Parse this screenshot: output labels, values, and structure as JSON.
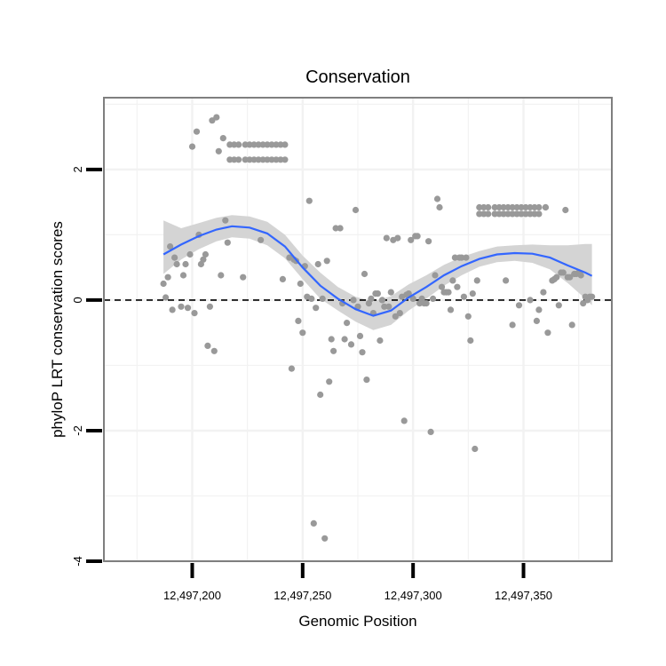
{
  "colors": {
    "points": "#999999",
    "smooth_line": "#3366FF",
    "ribbon": "#D4D4D4",
    "panel_border": "#7F7F7F",
    "grid": "#F2F2F2",
    "reference_line": "#000000"
  },
  "chart_data": {
    "type": "scatter",
    "title": "Conservation",
    "xlabel": "Genomic Position",
    "ylabel": "phyloP LRT conservation scores",
    "xlim": [
      12497160,
      12497390
    ],
    "ylim": [
      -4,
      3.1
    ],
    "x_ticks": [
      12497200,
      12497250,
      12497300,
      12497350
    ],
    "x_tick_labels": [
      "12,497,200",
      "12,497,250",
      "12,497,300",
      "12,497,350"
    ],
    "y_ticks": [
      -4,
      -2,
      0,
      2
    ],
    "y_tick_labels": [
      "-4",
      "-2",
      "0",
      "2"
    ],
    "reference_line": {
      "y": 0,
      "style": "dashed"
    },
    "grid": true,
    "points": [
      [
        12497187,
        0.25
      ],
      [
        12497188,
        0.04
      ],
      [
        12497189,
        0.35
      ],
      [
        12497190,
        0.82
      ],
      [
        12497191,
        -0.15
      ],
      [
        12497192,
        0.65
      ],
      [
        12497193,
        0.55
      ],
      [
        12497195,
        -0.1
      ],
      [
        12497196,
        0.38
      ],
      [
        12497197,
        0.55
      ],
      [
        12497198,
        -0.12
      ],
      [
        12497199,
        0.7
      ],
      [
        12497200,
        2.35
      ],
      [
        12497201,
        -0.2
      ],
      [
        12497202,
        2.58
      ],
      [
        12497203,
        1.0
      ],
      [
        12497204,
        0.55
      ],
      [
        12497205,
        0.62
      ],
      [
        12497206,
        0.7
      ],
      [
        12497207,
        -0.7
      ],
      [
        12497208,
        -0.1
      ],
      [
        12497209,
        2.75
      ],
      [
        12497210,
        -0.78
      ],
      [
        12497211,
        2.8
      ],
      [
        12497212,
        2.28
      ],
      [
        12497213,
        0.38
      ],
      [
        12497214,
        2.48
      ],
      [
        12497215,
        1.22
      ],
      [
        12497216,
        0.88
      ],
      [
        12497217,
        2.38
      ],
      [
        12497217,
        2.15
      ],
      [
        12497219,
        2.38
      ],
      [
        12497219,
        2.15
      ],
      [
        12497221,
        2.38
      ],
      [
        12497221,
        2.15
      ],
      [
        12497224,
        2.38
      ],
      [
        12497224,
        2.15
      ],
      [
        12497226,
        2.38
      ],
      [
        12497226,
        2.15
      ],
      [
        12497228,
        2.38
      ],
      [
        12497228,
        2.15
      ],
      [
        12497230,
        2.38
      ],
      [
        12497230,
        2.15
      ],
      [
        12497232,
        2.38
      ],
      [
        12497232,
        2.15
      ],
      [
        12497234,
        2.38
      ],
      [
        12497234,
        2.15
      ],
      [
        12497236,
        2.38
      ],
      [
        12497236,
        2.15
      ],
      [
        12497238,
        2.38
      ],
      [
        12497238,
        2.15
      ],
      [
        12497240,
        2.38
      ],
      [
        12497240,
        2.15
      ],
      [
        12497242,
        2.38
      ],
      [
        12497242,
        2.15
      ],
      [
        12497223,
        0.35
      ],
      [
        12497231,
        0.92
      ],
      [
        12497241,
        0.32
      ],
      [
        12497244,
        0.65
      ],
      [
        12497245,
        -1.05
      ],
      [
        12497246,
        0.62
      ],
      [
        12497247,
        0.6
      ],
      [
        12497248,
        -0.32
      ],
      [
        12497249,
        0.25
      ],
      [
        12497250,
        -0.5
      ],
      [
        12497251,
        0.52
      ],
      [
        12497252,
        0.05
      ],
      [
        12497253,
        1.52
      ],
      [
        12497254,
        0.02
      ],
      [
        12497255,
        -3.42
      ],
      [
        12497256,
        -0.12
      ],
      [
        12497257,
        0.55
      ],
      [
        12497258,
        -1.45
      ],
      [
        12497259,
        0.02
      ],
      [
        12497260,
        -3.65
      ],
      [
        12497261,
        0.6
      ],
      [
        12497262,
        -1.25
      ],
      [
        12497263,
        -0.6
      ],
      [
        12497264,
        -0.78
      ],
      [
        12497265,
        1.1
      ],
      [
        12497267,
        1.1
      ],
      [
        12497268,
        -0.05
      ],
      [
        12497269,
        -0.6
      ],
      [
        12497270,
        -0.35
      ],
      [
        12497272,
        -0.68
      ],
      [
        12497273,
        0.0
      ],
      [
        12497274,
        1.38
      ],
      [
        12497275,
        -0.1
      ],
      [
        12497276,
        -0.55
      ],
      [
        12497277,
        -0.8
      ],
      [
        12497278,
        0.4
      ],
      [
        12497279,
        -1.22
      ],
      [
        12497280,
        -0.05
      ],
      [
        12497281,
        0.02
      ],
      [
        12497282,
        -0.2
      ],
      [
        12497283,
        0.1
      ],
      [
        12497284,
        0.1
      ],
      [
        12497285,
        -0.62
      ],
      [
        12497286,
        0.0
      ],
      [
        12497287,
        -0.1
      ],
      [
        12497288,
        0.95
      ],
      [
        12497289,
        -0.1
      ],
      [
        12497290,
        0.12
      ],
      [
        12497291,
        0.92
      ],
      [
        12497292,
        -0.25
      ],
      [
        12497293,
        0.95
      ],
      [
        12497294,
        -0.2
      ],
      [
        12497295,
        0.05
      ],
      [
        12497296,
        -1.85
      ],
      [
        12497297,
        0.08
      ],
      [
        12497298,
        0.1
      ],
      [
        12497299,
        0.92
      ],
      [
        12497300,
        0.02
      ],
      [
        12497301,
        0.98
      ],
      [
        12497302,
        0.98
      ],
      [
        12497303,
        -0.05
      ],
      [
        12497304,
        0.02
      ],
      [
        12497305,
        -0.05
      ],
      [
        12497306,
        -0.05
      ],
      [
        12497307,
        0.9
      ],
      [
        12497308,
        -2.02
      ],
      [
        12497309,
        0.02
      ],
      [
        12497310,
        0.38
      ],
      [
        12497311,
        1.55
      ],
      [
        12497312,
        1.42
      ],
      [
        12497313,
        0.2
      ],
      [
        12497314,
        0.12
      ],
      [
        12497315,
        0.12
      ],
      [
        12497316,
        0.12
      ],
      [
        12497317,
        -0.15
      ],
      [
        12497318,
        0.3
      ],
      [
        12497319,
        0.65
      ],
      [
        12497320,
        0.2
      ],
      [
        12497321,
        0.65
      ],
      [
        12497322,
        0.65
      ],
      [
        12497323,
        0.05
      ],
      [
        12497324,
        0.65
      ],
      [
        12497325,
        -0.25
      ],
      [
        12497326,
        -0.62
      ],
      [
        12497327,
        0.1
      ],
      [
        12497328,
        -2.28
      ],
      [
        12497329,
        0.3
      ],
      [
        12497342,
        0.3
      ],
      [
        12497330,
        1.42
      ],
      [
        12497330,
        1.32
      ],
      [
        12497332,
        1.42
      ],
      [
        12497332,
        1.32
      ],
      [
        12497334,
        1.42
      ],
      [
        12497334,
        1.32
      ],
      [
        12497337,
        1.42
      ],
      [
        12497337,
        1.32
      ],
      [
        12497339,
        1.42
      ],
      [
        12497339,
        1.32
      ],
      [
        12497341,
        1.42
      ],
      [
        12497341,
        1.32
      ],
      [
        12497343,
        1.42
      ],
      [
        12497343,
        1.32
      ],
      [
        12497345,
        1.42
      ],
      [
        12497345,
        1.32
      ],
      [
        12497347,
        1.42
      ],
      [
        12497347,
        1.32
      ],
      [
        12497349,
        1.42
      ],
      [
        12497349,
        1.32
      ],
      [
        12497351,
        1.42
      ],
      [
        12497351,
        1.32
      ],
      [
        12497353,
        1.42
      ],
      [
        12497353,
        1.32
      ],
      [
        12497355,
        1.42
      ],
      [
        12497355,
        1.32
      ],
      [
        12497357,
        1.42
      ],
      [
        12497357,
        1.32
      ],
      [
        12497360,
        1.42
      ],
      [
        12497360,
        1.42
      ],
      [
        12497345,
        -0.38
      ],
      [
        12497348,
        -0.08
      ],
      [
        12497353,
        0.0
      ],
      [
        12497356,
        -0.32
      ],
      [
        12497357,
        -0.15
      ],
      [
        12497359,
        0.12
      ],
      [
        12497361,
        -0.5
      ],
      [
        12497363,
        0.3
      ],
      [
        12497364,
        0.32
      ],
      [
        12497365,
        0.35
      ],
      [
        12497366,
        -0.08
      ],
      [
        12497367,
        0.42
      ],
      [
        12497368,
        0.42
      ],
      [
        12497369,
        1.38
      ],
      [
        12497370,
        0.35
      ],
      [
        12497371,
        0.35
      ],
      [
        12497372,
        -0.38
      ],
      [
        12497373,
        0.4
      ],
      [
        12497374,
        0.4
      ],
      [
        12497375,
        0.42
      ],
      [
        12497376,
        0.38
      ],
      [
        12497377,
        -0.05
      ],
      [
        12497378,
        0.05
      ],
      [
        12497379,
        0.0
      ],
      [
        12497380,
        0.05
      ],
      [
        12497381,
        0.05
      ]
    ],
    "smooth": {
      "x": [
        12497187,
        12497195,
        12497203,
        12497211,
        12497218,
        12497226,
        12497234,
        12497242,
        12497250,
        12497258,
        12497266,
        12497274,
        12497282,
        12497290,
        12497298,
        12497306,
        12497314,
        12497322,
        12497330,
        12497338,
        12497346,
        12497354,
        12497362,
        12497370,
        12497378,
        12497381
      ],
      "y": [
        0.7,
        0.85,
        0.98,
        1.08,
        1.13,
        1.11,
        1.02,
        0.82,
        0.5,
        0.22,
        0.02,
        -0.14,
        -0.24,
        -0.16,
        0.04,
        0.2,
        0.38,
        0.52,
        0.63,
        0.7,
        0.72,
        0.71,
        0.65,
        0.53,
        0.42,
        0.37
      ],
      "lower": [
        0.4,
        0.62,
        0.78,
        0.9,
        0.96,
        0.94,
        0.84,
        0.64,
        0.32,
        0.02,
        -0.16,
        -0.33,
        -0.46,
        -0.38,
        -0.16,
        0.02,
        0.22,
        0.38,
        0.51,
        0.58,
        0.6,
        0.57,
        0.47,
        0.26,
        0.02,
        -0.08
      ],
      "upper": [
        1.22,
        1.1,
        1.18,
        1.26,
        1.3,
        1.28,
        1.2,
        1.0,
        0.68,
        0.42,
        0.2,
        0.05,
        -0.02,
        0.06,
        0.24,
        0.38,
        0.54,
        0.66,
        0.75,
        0.82,
        0.84,
        0.85,
        0.84,
        0.84,
        0.86,
        0.86
      ]
    }
  }
}
